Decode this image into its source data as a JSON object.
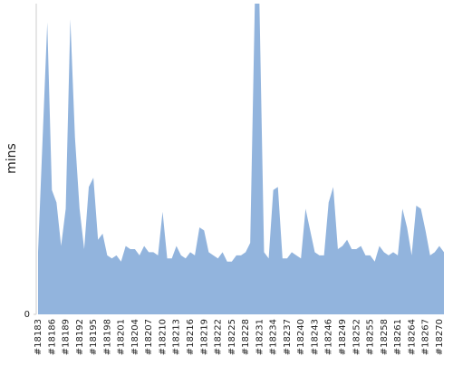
{
  "chart_data": {
    "type": "area",
    "y_label": "mins",
    "color": "#92b4dd",
    "categories": [
      "#18183",
      null,
      null,
      "#18186",
      null,
      null,
      "#18189",
      null,
      null,
      "#18192",
      null,
      null,
      "#18195",
      null,
      null,
      "#18198",
      null,
      null,
      "#18201",
      null,
      null,
      "#18204",
      null,
      null,
      "#18207",
      null,
      null,
      "#18210",
      null,
      null,
      "#18213",
      null,
      null,
      "#18216",
      null,
      null,
      "#18219",
      null,
      null,
      "#18222",
      null,
      null,
      "#18225",
      null,
      null,
      "#18228",
      null,
      null,
      "#18231",
      null,
      null,
      "#18234",
      null,
      null,
      "#18237",
      null,
      null,
      "#18240",
      null,
      null,
      "#18243",
      null,
      null,
      "#18246",
      null,
      null,
      "#18249",
      null,
      null,
      "#18252",
      null,
      null,
      "#18255",
      null,
      null,
      "#18258",
      null,
      null,
      "#18261",
      null,
      null,
      "#18264",
      null,
      null,
      "#18267",
      null,
      null,
      "#18270",
      null
    ],
    "values": [
      20,
      57,
      94,
      40,
      36,
      22,
      34,
      95,
      57,
      34,
      21,
      41,
      44,
      24,
      26,
      19,
      18,
      19,
      17,
      22,
      21,
      21,
      19,
      22,
      20,
      20,
      19,
      33,
      18,
      18,
      22,
      19,
      18,
      20,
      19,
      28,
      27,
      20,
      19,
      18,
      20,
      17,
      17,
      19,
      19,
      20,
      23,
      100,
      100,
      20,
      18,
      40,
      41,
      18,
      18,
      20,
      19,
      18,
      34,
      27,
      20,
      19,
      19,
      36,
      41,
      21,
      22,
      24,
      21,
      21,
      22,
      19,
      19,
      17,
      22,
      20,
      19,
      20,
      19,
      34,
      28,
      19,
      35,
      34,
      27,
      19,
      20,
      22,
      20
    ],
    "ylim": [
      0,
      100
    ],
    "yticks": [
      0
    ]
  }
}
